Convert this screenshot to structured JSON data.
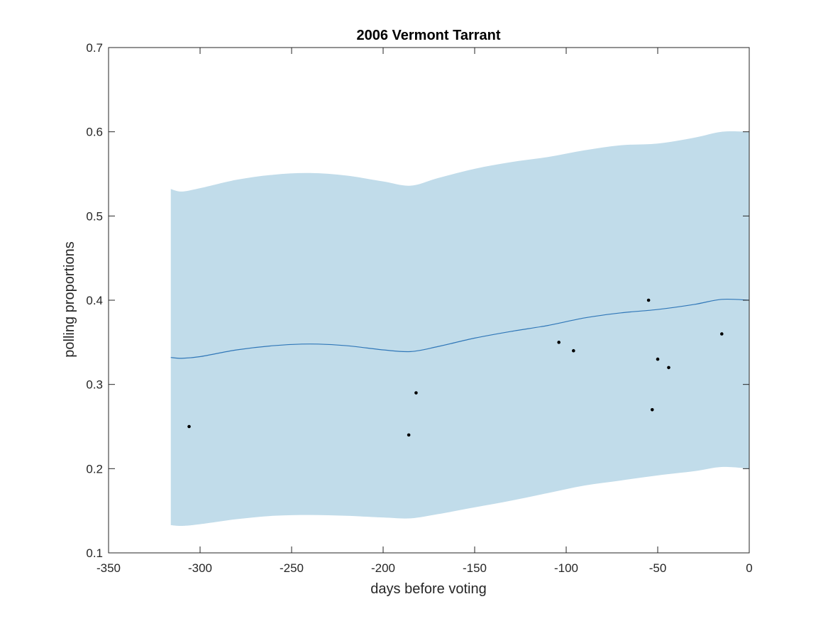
{
  "chart_data": {
    "type": "line",
    "title": "2006 Vermont Tarrant",
    "xlabel": "days before voting",
    "ylabel": "polling proportions",
    "xlim": [
      -350,
      0
    ],
    "ylim": [
      0.1,
      0.7
    ],
    "xticks": [
      -350,
      -300,
      -250,
      -200,
      -150,
      -100,
      -50,
      0
    ],
    "yticks": [
      0.1,
      0.2,
      0.3,
      0.4,
      0.5,
      0.6,
      0.7
    ],
    "grid": false,
    "colors": {
      "band": "#c1dcea",
      "mean": "#3077b8",
      "points": "#000000",
      "axes": "#262626"
    },
    "series": [
      {
        "type": "band",
        "x": [
          -316,
          -310,
          -300,
          -280,
          -260,
          -240,
          -220,
          -200,
          -185,
          -170,
          -150,
          -130,
          -110,
          -90,
          -70,
          -50,
          -30,
          -15,
          0
        ],
        "upper": [
          0.532,
          0.529,
          0.533,
          0.543,
          0.549,
          0.551,
          0.548,
          0.541,
          0.536,
          0.545,
          0.556,
          0.564,
          0.57,
          0.578,
          0.584,
          0.586,
          0.593,
          0.6,
          0.6
        ],
        "lower": [
          0.133,
          0.132,
          0.134,
          0.14,
          0.144,
          0.145,
          0.144,
          0.142,
          0.141,
          0.146,
          0.154,
          0.162,
          0.171,
          0.18,
          0.186,
          0.192,
          0.197,
          0.202,
          0.2
        ]
      },
      {
        "type": "line",
        "x": [
          -316,
          -310,
          -300,
          -280,
          -260,
          -240,
          -220,
          -200,
          -185,
          -170,
          -150,
          -130,
          -110,
          -90,
          -70,
          -50,
          -30,
          -15,
          0
        ],
        "y": [
          0.332,
          0.331,
          0.333,
          0.341,
          0.346,
          0.348,
          0.346,
          0.341,
          0.339,
          0.345,
          0.355,
          0.363,
          0.37,
          0.379,
          0.385,
          0.389,
          0.395,
          0.401,
          0.4
        ]
      },
      {
        "type": "scatter",
        "x": [
          -306,
          -186,
          -182,
          -104,
          -96,
          -55,
          -53,
          -50,
          -44,
          -15
        ],
        "y": [
          0.25,
          0.24,
          0.29,
          0.35,
          0.34,
          0.4,
          0.27,
          0.33,
          0.32,
          0.36
        ]
      }
    ]
  }
}
